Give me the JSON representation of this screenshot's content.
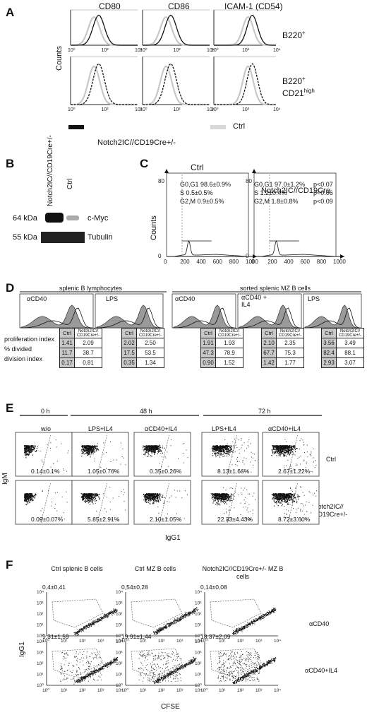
{
  "panelA": {
    "letter": "A",
    "cols": [
      "CD80",
      "CD86",
      "ICAM-1 (CD54)"
    ],
    "rows": [
      "B220+",
      "B220+ CD21high"
    ],
    "row1": "B220",
    "row1_sup": "+",
    "row2a": "B220",
    "row2a_sup": "+",
    "row2b": "CD21",
    "row2b_sup": "high",
    "ylabel": "Counts",
    "legend_ctrl": "Ctrl",
    "legend_tg": "Notch2IC//CD19Cre+/-"
  },
  "panelB": {
    "letter": "B",
    "lane1": "Notch2IC//CD19Cre+/-",
    "lane2": "Ctrl",
    "kda1": "64 kDa",
    "kda2": "55 kDa",
    "prot1": "c-Myc",
    "prot2": "Tubulin"
  },
  "panelC": {
    "letter": "C",
    "ylabel": "Counts",
    "left_title": "Ctrl",
    "right_title": "Notch2IC//CD19Cre",
    "left_stats": [
      "G0,G1  98.6±0.9%",
      "S        0.5±0.5%",
      "G2,M   0.9±0.5%"
    ],
    "right_stats": [
      "G0,G1 97.0±1.2%",
      "S       1.2±0.4%",
      "G2,M   1.8±0.8%"
    ],
    "pvals": [
      "p<0.07",
      "p<0.06",
      "p<0.09"
    ],
    "xticks": [
      "0",
      "200",
      "400",
      "600",
      "800",
      "1000"
    ],
    "yticks": [
      "0",
      "80"
    ]
  },
  "panelD": {
    "letter": "D",
    "group1": "splenic B lymphocytes",
    "group2": "sorted splenic MZ B cells",
    "conds": [
      "αCD40",
      "LPS",
      "αCD40",
      "αCD40 + IL4",
      "LPS"
    ],
    "row_labels": [
      "proliferation index",
      "% divided",
      "division index"
    ],
    "col_ctrl": "Ctrl",
    "col_tg": "Notch2IC// CD19Cre+/-",
    "tables": [
      {
        "ctrl": [
          "1.41",
          "11.7",
          "0.17"
        ],
        "tg": [
          "2.09",
          "38.7",
          "0.81"
        ]
      },
      {
        "ctrl": [
          "2.02",
          "17.5",
          "0.35"
        ],
        "tg": [
          "2.50",
          "53.5",
          "1.34"
        ]
      },
      {
        "ctrl": [
          "1.91",
          "47.3",
          "0.90"
        ],
        "tg": [
          "1.93",
          "78.9",
          "1.52"
        ]
      },
      {
        "ctrl": [
          "2.10",
          "67.7",
          "1.42"
        ],
        "tg": [
          "2.35",
          "75.3",
          "1.77"
        ]
      },
      {
        "ctrl": [
          "3.56",
          "82.4",
          "2.93"
        ],
        "tg": [
          "3.49",
          "88.1",
          "3.07"
        ]
      }
    ]
  },
  "panelE": {
    "letter": "E",
    "times": [
      "0 h",
      "48 h",
      "72 h"
    ],
    "conds": [
      "w/o",
      "LPS+IL4",
      "αCD40+IL4",
      "LPS+IL4",
      "αCD40+IL4"
    ],
    "ctrl_vals": [
      "0.14±0.1%",
      "1.05±0.76%",
      "0.35±0.26%",
      "8.13±1.66%",
      "2.67±1.22%"
    ],
    "tg_vals": [
      "0.09±0.07%",
      "5.85±2.91%",
      "2.10±1.05%",
      "22.33±4.43%",
      "8.72±3.60%"
    ],
    "row_ctrl": "Ctrl",
    "row_tg": "Notch2IC// CD19Cre+/-",
    "ylabel": "IgM",
    "xlabel": "IgG1"
  },
  "panelF": {
    "letter": "F",
    "cols": [
      "Ctrl splenic B cells",
      "Ctrl MZ B cells",
      "Notch2IC//CD19Cre+/- MZ B cells"
    ],
    "row1": "αCD40",
    "row2": "αCD40+IL4",
    "row1_vals": [
      "0,4±0,41",
      "0,54±0,28",
      "0,14±0,08"
    ],
    "row2_vals": [
      "9,31±1,59",
      "19,91±1,44",
      "18,37±2,09"
    ],
    "ylabel": "IgG1",
    "xlabel": "CFSE",
    "decades": [
      "10⁰",
      "10¹",
      "10²",
      "10³",
      "10⁴"
    ]
  }
}
